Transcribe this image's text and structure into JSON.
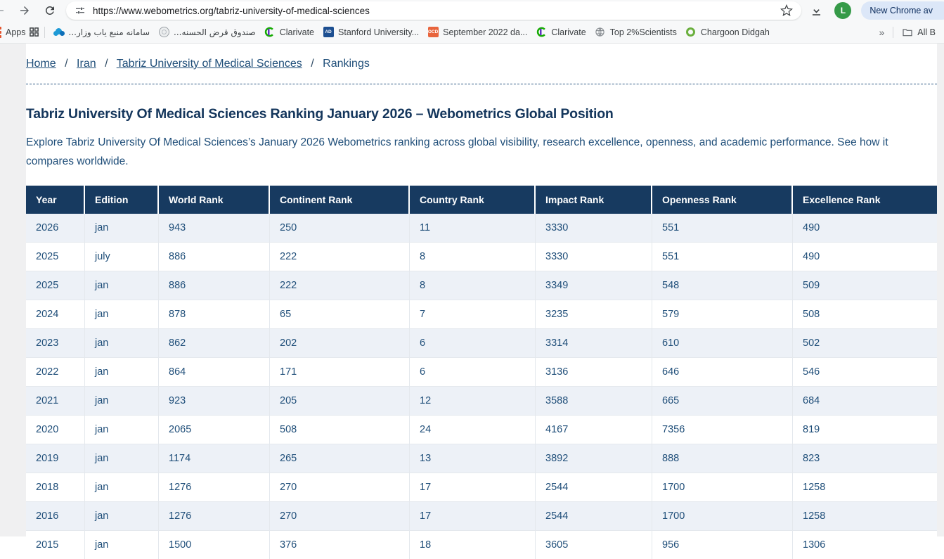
{
  "browser": {
    "url": "https://www.webometrics.org/tabriz-university-of-medical-sciences",
    "avatar_initial": "L",
    "new_chrome_label": "New Chrome av",
    "bookmarks_bar": {
      "apps_label": "Apps",
      "items": [
        {
          "label": "سامانه منبع یاب وزار...",
          "icon": "cloud-blue-icon",
          "rtl": true
        },
        {
          "label": "صندوق قرض الحسنه...",
          "icon": "emblem-icon",
          "rtl": true
        },
        {
          "label": "Clarivate",
          "icon": "clarivate-icon"
        },
        {
          "label": "Stanford University...",
          "icon": "ad-badge-icon",
          "badge": "AD"
        },
        {
          "label": "September 2022 da...",
          "icon": "ocd-badge-icon",
          "badge": "OCD"
        },
        {
          "label": "Clarivate",
          "icon": "clarivate-icon"
        },
        {
          "label": "Top 2%Scientists",
          "icon": "globe-icon"
        },
        {
          "label": "Chargoon Didgah",
          "icon": "green-ring-icon"
        }
      ],
      "overflow_chevron": "»",
      "all_bookmarks_label": "All B"
    }
  },
  "page": {
    "breadcrumb": {
      "home": "Home",
      "country": "Iran",
      "university": "Tabriz University of Medical Sciences",
      "current": "Rankings",
      "separator": "/"
    },
    "title": "Tabriz University Of Medical Sciences Ranking January 2026 – Webometrics Global Position",
    "description": "Explore Tabriz University Of Medical Sciences’s January 2026 Webometrics ranking across global visibility, research excellence, openness, and academic performance. See how it compares worldwide.",
    "table": {
      "headers": [
        "Year",
        "Edition",
        "World Rank",
        "Continent Rank",
        "Country Rank",
        "Impact Rank",
        "Openness Rank",
        "Excellence Rank"
      ],
      "rows": [
        [
          "2026",
          "jan",
          "943",
          "250",
          "11",
          "3330",
          "551",
          "490"
        ],
        [
          "2025",
          "july",
          "886",
          "222",
          "8",
          "3330",
          "551",
          "490"
        ],
        [
          "2025",
          "jan",
          "886",
          "222",
          "8",
          "3349",
          "548",
          "509"
        ],
        [
          "2024",
          "jan",
          "878",
          "65",
          "7",
          "3235",
          "579",
          "508"
        ],
        [
          "2023",
          "jan",
          "862",
          "202",
          "6",
          "3314",
          "610",
          "502"
        ],
        [
          "2022",
          "jan",
          "864",
          "171",
          "6",
          "3136",
          "646",
          "546"
        ],
        [
          "2021",
          "jan",
          "923",
          "205",
          "12",
          "3588",
          "665",
          "684"
        ],
        [
          "2020",
          "jan",
          "2065",
          "508",
          "24",
          "4167",
          "7356",
          "819"
        ],
        [
          "2019",
          "jan",
          "1174",
          "265",
          "13",
          "3892",
          "888",
          "823"
        ],
        [
          "2018",
          "jan",
          "1276",
          "270",
          "17",
          "2544",
          "1700",
          "1258"
        ],
        [
          "2016",
          "jan",
          "1276",
          "270",
          "17",
          "2544",
          "1700",
          "1258"
        ],
        [
          "2015",
          "jan",
          "1500",
          "376",
          "18",
          "3605",
          "956",
          "1306"
        ]
      ]
    }
  },
  "colors": {
    "header_navy": "#173a60",
    "row_shade": "#edf1f7",
    "page_text": "#1f4e79",
    "title_navy": "#14365c",
    "avatar_green": "#359a48",
    "chrome_pill_blue": "#dce7f8",
    "gutter_gray": "#f0f0f1"
  }
}
